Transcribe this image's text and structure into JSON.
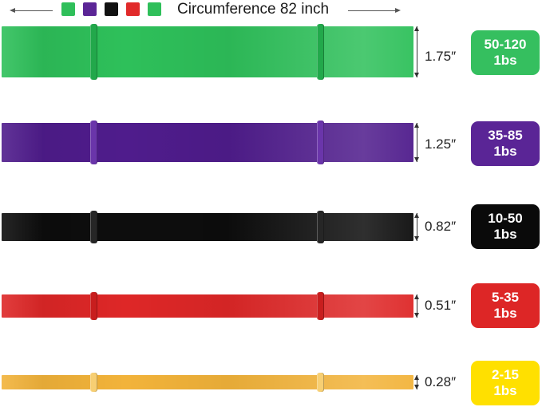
{
  "header": {
    "title": "Circumference 82 inch",
    "swatch_colors": [
      "#2fbf5a",
      "#5b2596",
      "#111111",
      "#e12a2a",
      "#2fbf5a"
    ]
  },
  "bands": [
    {
      "color": "#2ec05a",
      "clip_color": "#22a84b",
      "width_label": "1.75″",
      "resistance_range": "50-120",
      "unit": "1bs",
      "badge_color": "#35bf5f",
      "badge_text_color": "#ffffff"
    },
    {
      "color": "#4f1c8c",
      "clip_color": "#6a35aa",
      "width_label": "1.25″",
      "resistance_range": "35-85",
      "unit": "1bs",
      "badge_color": "#5a2596",
      "badge_text_color": "#ffffff"
    },
    {
      "color": "#0d0d0d",
      "clip_color": "#262626",
      "width_label": "0.82″",
      "resistance_range": "10-50",
      "unit": "1bs",
      "badge_color": "#0a0a0a",
      "badge_text_color": "#ffffff"
    },
    {
      "color": "#de2727",
      "clip_color": "#c81e1e",
      "width_label": "0.51″",
      "resistance_range": "5-35",
      "unit": "1bs",
      "badge_color": "#dd2626",
      "badge_text_color": "#ffffff"
    },
    {
      "color": "#f2b33a",
      "clip_color": "#f7cf73",
      "width_label": "0.28″",
      "resistance_range": "2-15",
      "unit": "1bs",
      "badge_color": "#ffe000",
      "badge_text_color": "#ffffff"
    }
  ]
}
